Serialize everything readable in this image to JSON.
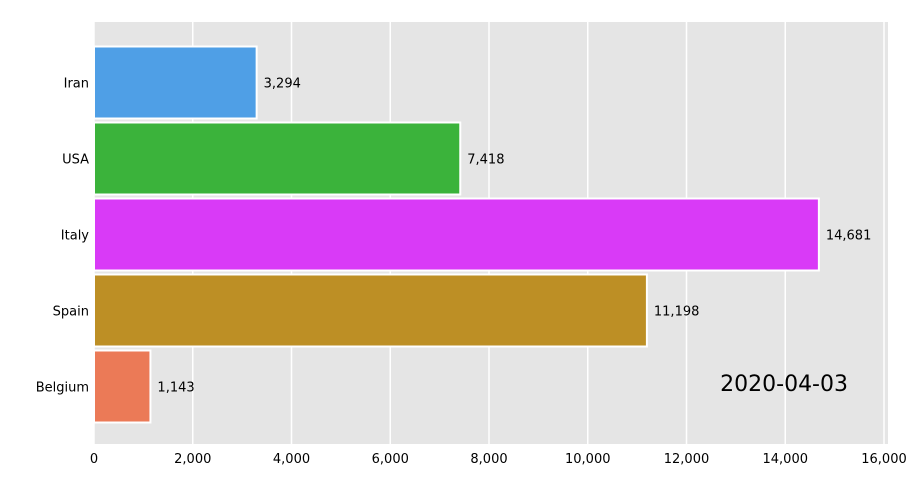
{
  "chart_data": {
    "type": "bar",
    "orientation": "horizontal",
    "categories": [
      "Iran",
      "USA",
      "Italy",
      "Spain",
      "Belgium"
    ],
    "values": [
      3294,
      7418,
      14681,
      11198,
      1143
    ],
    "value_labels": [
      "3,294",
      "7,418",
      "14,681",
      "11,198",
      "1,143"
    ],
    "colors": [
      "#4f9fe6",
      "#3bb33b",
      "#d93af7",
      "#bd8f25",
      "#eb7a57"
    ],
    "xlim": [
      0,
      16000
    ],
    "xticks": [
      0,
      2000,
      4000,
      6000,
      8000,
      10000,
      12000,
      14000,
      16000
    ],
    "xtick_labels": [
      "0",
      "2,000",
      "4,000",
      "6,000",
      "8,000",
      "10,000",
      "12,000",
      "14,000",
      "16,000"
    ],
    "date_label": "2020-04-03",
    "background": "#e5e5e5",
    "grid": true,
    "title": "",
    "xlabel": "",
    "ylabel": ""
  }
}
